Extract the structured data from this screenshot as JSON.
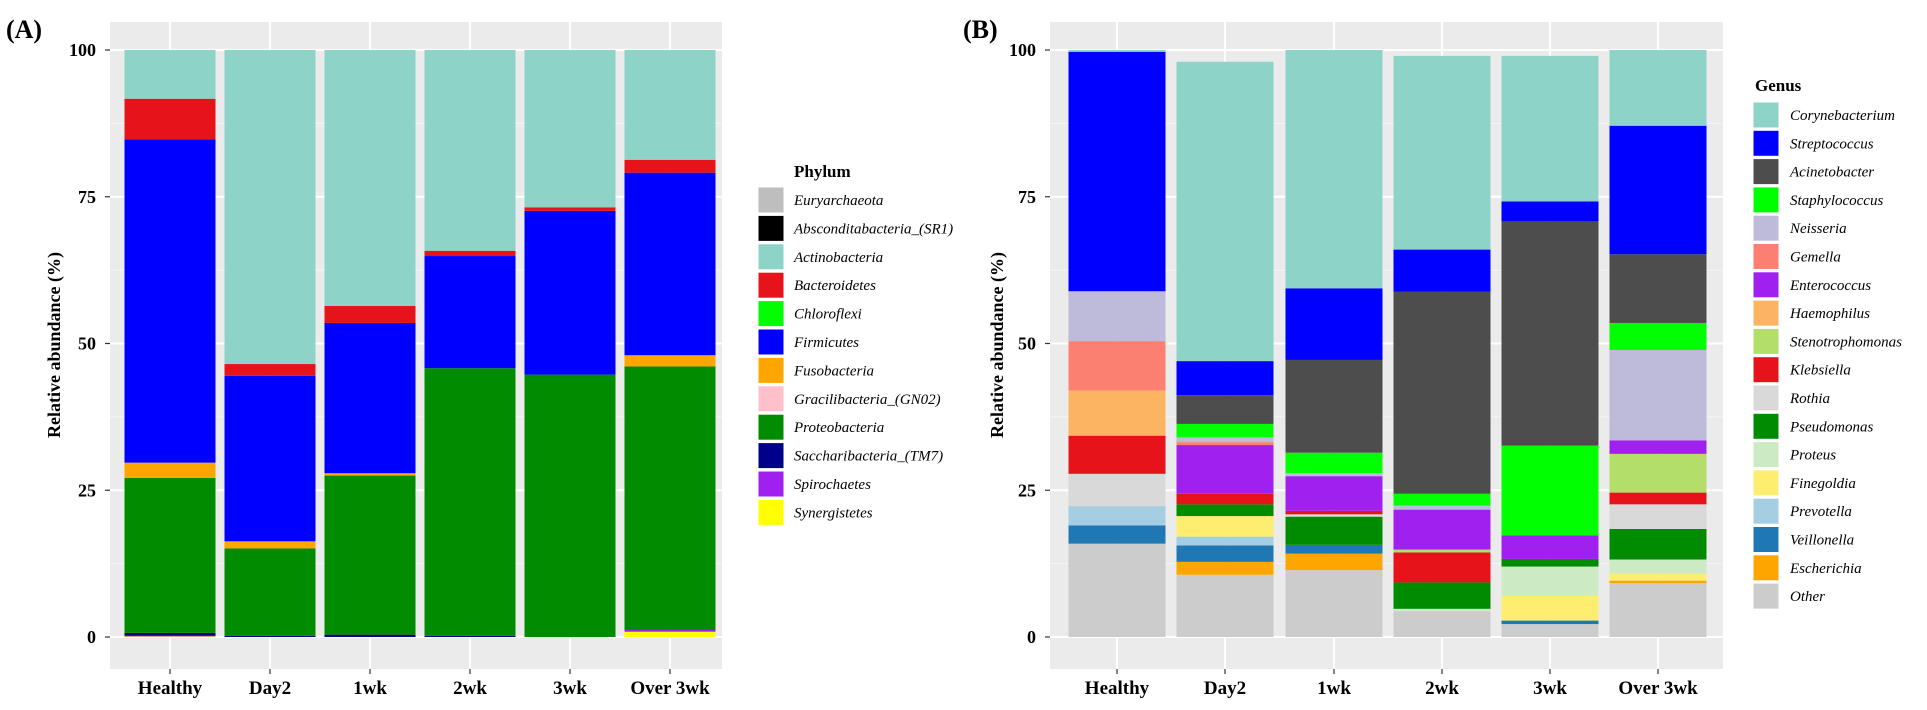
{
  "chart_data": [
    {
      "type": "bar",
      "stacked": true,
      "panel_label": "(A)",
      "title": "",
      "xlabel": "",
      "ylabel": "Relative abundance (%)",
      "ylim": [
        0,
        100
      ],
      "yticks": [
        0,
        25,
        50,
        75,
        100
      ],
      "grid": true,
      "legend_title": "Phylum",
      "legend_position": "right",
      "categories": [
        "Healthy",
        "Day2",
        "1wk",
        "2wk",
        "3wk",
        "Over 3wk"
      ],
      "series": [
        {
          "name": "Euryarchaeota",
          "color": "#BEBEBE",
          "values": [
            0,
            0,
            0,
            0,
            0,
            0
          ]
        },
        {
          "name": "Absconditabacteria_(SR1)",
          "color": "#000000",
          "values": [
            0,
            0,
            0,
            0,
            0,
            0
          ]
        },
        {
          "name": "Actinobacteria",
          "color": "#8DD3C7",
          "values": [
            8.3,
            53.5,
            43.6,
            34.2,
            26.8,
            18.7
          ]
        },
        {
          "name": "Bacteroidetes",
          "color": "#E6131A",
          "values": [
            6.9,
            2.0,
            2.9,
            0.9,
            0.6,
            2.2
          ]
        },
        {
          "name": "Chloroflexi",
          "color": "#00FF00",
          "values": [
            0,
            0,
            0,
            0,
            0,
            0
          ]
        },
        {
          "name": "Firmicutes",
          "color": "#0000FF",
          "values": [
            55.1,
            28.2,
            25.6,
            19.1,
            27.9,
            31.1
          ]
        },
        {
          "name": "Fusobacteria",
          "color": "#FFA500",
          "values": [
            2.6,
            1.2,
            0.4,
            0,
            0,
            1.9
          ]
        },
        {
          "name": "Gracilibacteria_(GN02)",
          "color": "#FFC0CB",
          "values": [
            0,
            0,
            0,
            0,
            0,
            0
          ]
        },
        {
          "name": "Proteobacteria",
          "color": "#008B00",
          "values": [
            26.4,
            14.9,
            27.1,
            45.6,
            44.7,
            44.9
          ]
        },
        {
          "name": "Saccharibacteria_(TM7)",
          "color": "#00008B",
          "values": [
            0.5,
            0.2,
            0.4,
            0.2,
            0,
            0
          ]
        },
        {
          "name": "Spirochaetes",
          "color": "#A020F0",
          "values": [
            0.1,
            0,
            0,
            0,
            0,
            0.3
          ]
        },
        {
          "name": "Synergistetes",
          "color": "#FFFF00",
          "values": [
            0.1,
            0,
            0,
            0,
            0,
            0.9
          ]
        }
      ]
    },
    {
      "type": "bar",
      "stacked": true,
      "panel_label": "(B)",
      "title": "",
      "xlabel": "",
      "ylabel": "Relative abundance (%)",
      "ylim": [
        0,
        100
      ],
      "yticks": [
        0,
        25,
        50,
        75,
        100
      ],
      "grid": true,
      "legend_title": "Genus",
      "legend_position": "right",
      "categories": [
        "Healthy",
        "Day2",
        "1wk",
        "2wk",
        "3wk",
        "Over 3wk"
      ],
      "series": [
        {
          "name": "Corynebacterium",
          "color": "#8DD3C7",
          "values": [
            0.3,
            51.0,
            40.6,
            33.0,
            24.8,
            12.9
          ]
        },
        {
          "name": "Streptococcus",
          "color": "#0000FF",
          "values": [
            40.8,
            5.8,
            12.2,
            7.2,
            3.4,
            21.9
          ]
        },
        {
          "name": "Acinetobacter",
          "color": "#4D4D4D",
          "values": [
            0,
            4.9,
            15.8,
            34.4,
            38.2,
            11.7
          ]
        },
        {
          "name": "Staphylococcus",
          "color": "#00FF00",
          "values": [
            0,
            2.3,
            3.5,
            2.0,
            15.3,
            4.6
          ]
        },
        {
          "name": "Neisseria",
          "color": "#BEBADA",
          "values": [
            8.5,
            0.8,
            0.5,
            0.7,
            0,
            15.4
          ]
        },
        {
          "name": "Gemella",
          "color": "#FB8072",
          "values": [
            8.4,
            0.5,
            0,
            0,
            0,
            0
          ]
        },
        {
          "name": "Enterococcus",
          "color": "#A020F0",
          "values": [
            0,
            8.3,
            5.9,
            6.8,
            4.0,
            2.3
          ]
        },
        {
          "name": "Haemophilus",
          "color": "#FDB462",
          "values": [
            7.7,
            0,
            0,
            0,
            0,
            0
          ]
        },
        {
          "name": "Stenotrophomonas",
          "color": "#B3DE69",
          "values": [
            0,
            0,
            0,
            0.5,
            0,
            6.6
          ]
        },
        {
          "name": "Klebsiella",
          "color": "#E6131A",
          "values": [
            6.5,
            1.8,
            0.6,
            5.1,
            0,
            2.0
          ]
        },
        {
          "name": "Rothia",
          "color": "#D9D9D9",
          "values": [
            5.5,
            0,
            0.4,
            0,
            0,
            4.2
          ]
        },
        {
          "name": "Pseudomonas",
          "color": "#008B00",
          "values": [
            0,
            2.0,
            4.8,
            4.5,
            1.3,
            5.2
          ]
        },
        {
          "name": "Proteus",
          "color": "#CCEBC5",
          "values": [
            0,
            0,
            0,
            0.4,
            5.0,
            2.4
          ]
        },
        {
          "name": "Finegoldia",
          "color": "#FFED6F",
          "values": [
            0,
            3.5,
            0,
            0,
            4.2,
            1.2
          ]
        },
        {
          "name": "Prevotella",
          "color": "#A6CEE3",
          "values": [
            3.3,
            1.5,
            0,
            0,
            0,
            0
          ]
        },
        {
          "name": "Veillonella",
          "color": "#1F78B4",
          "values": [
            3.1,
            2.8,
            1.5,
            0,
            0.6,
            0
          ]
        },
        {
          "name": "Escherichia",
          "color": "#FFA500",
          "values": [
            0,
            2.2,
            2.8,
            0,
            0,
            0.4
          ]
        },
        {
          "name": "Other",
          "color": "#CCCCCC",
          "values": [
            15.9,
            10.6,
            11.4,
            4.4,
            2.2,
            9.2
          ]
        }
      ]
    }
  ]
}
